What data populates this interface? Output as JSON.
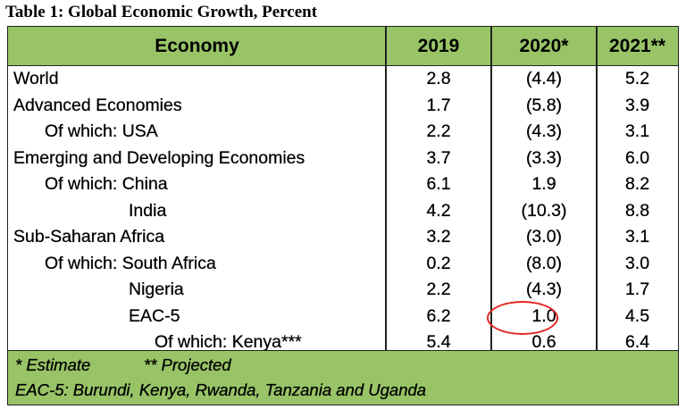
{
  "caption": "Table 1: Global Economic Growth, Percent",
  "headers": {
    "economy": "Economy",
    "y2019": "2019",
    "y2020": "2020*",
    "y2021": "2021**"
  },
  "rows": [
    {
      "label": "World",
      "v2019": "2.8",
      "v2020": "(4.4)",
      "v2021": "5.2"
    },
    {
      "label": "Advanced Economies",
      "v2019": "1.7",
      "v2020": "(5.8)",
      "v2021": "3.9"
    },
    {
      "label": "Of which: USA",
      "v2019": "2.2",
      "v2020": "(4.3)",
      "v2021": "3.1"
    },
    {
      "label": "Emerging and Developing Economies",
      "v2019": "3.7",
      "v2020": "(3.3)",
      "v2021": "6.0"
    },
    {
      "label": "Of which: China",
      "v2019": "6.1",
      "v2020": "1.9",
      "v2021": "8.2"
    },
    {
      "label": "India",
      "v2019": "4.2",
      "v2020": "(10.3)",
      "v2021": "8.8"
    },
    {
      "label": "Sub-Saharan Africa",
      "v2019": "3.2",
      "v2020": "(3.0)",
      "v2021": "3.1"
    },
    {
      "label": "Of which: South Africa",
      "v2019": "0.2",
      "v2020": "(8.0)",
      "v2021": "3.0"
    },
    {
      "label": "Nigeria",
      "v2019": "2.2",
      "v2020": "(4.3)",
      "v2021": "1.7"
    },
    {
      "label": "EAC-5",
      "v2019": "6.2",
      "v2020": "1.0",
      "v2021": "4.5"
    },
    {
      "label": "Of which: Kenya***",
      "v2019": "5.4",
      "v2020": "0.6",
      "v2021": "6.4"
    }
  ],
  "footer": {
    "estimate": "* Estimate",
    "projected": "** Projected",
    "eac_note": "EAC-5: Burundi, Kenya, Rwanda, Tanzania and Uganda"
  },
  "colors": {
    "header_green": "#98c467",
    "highlight_circle": "#e52420"
  }
}
